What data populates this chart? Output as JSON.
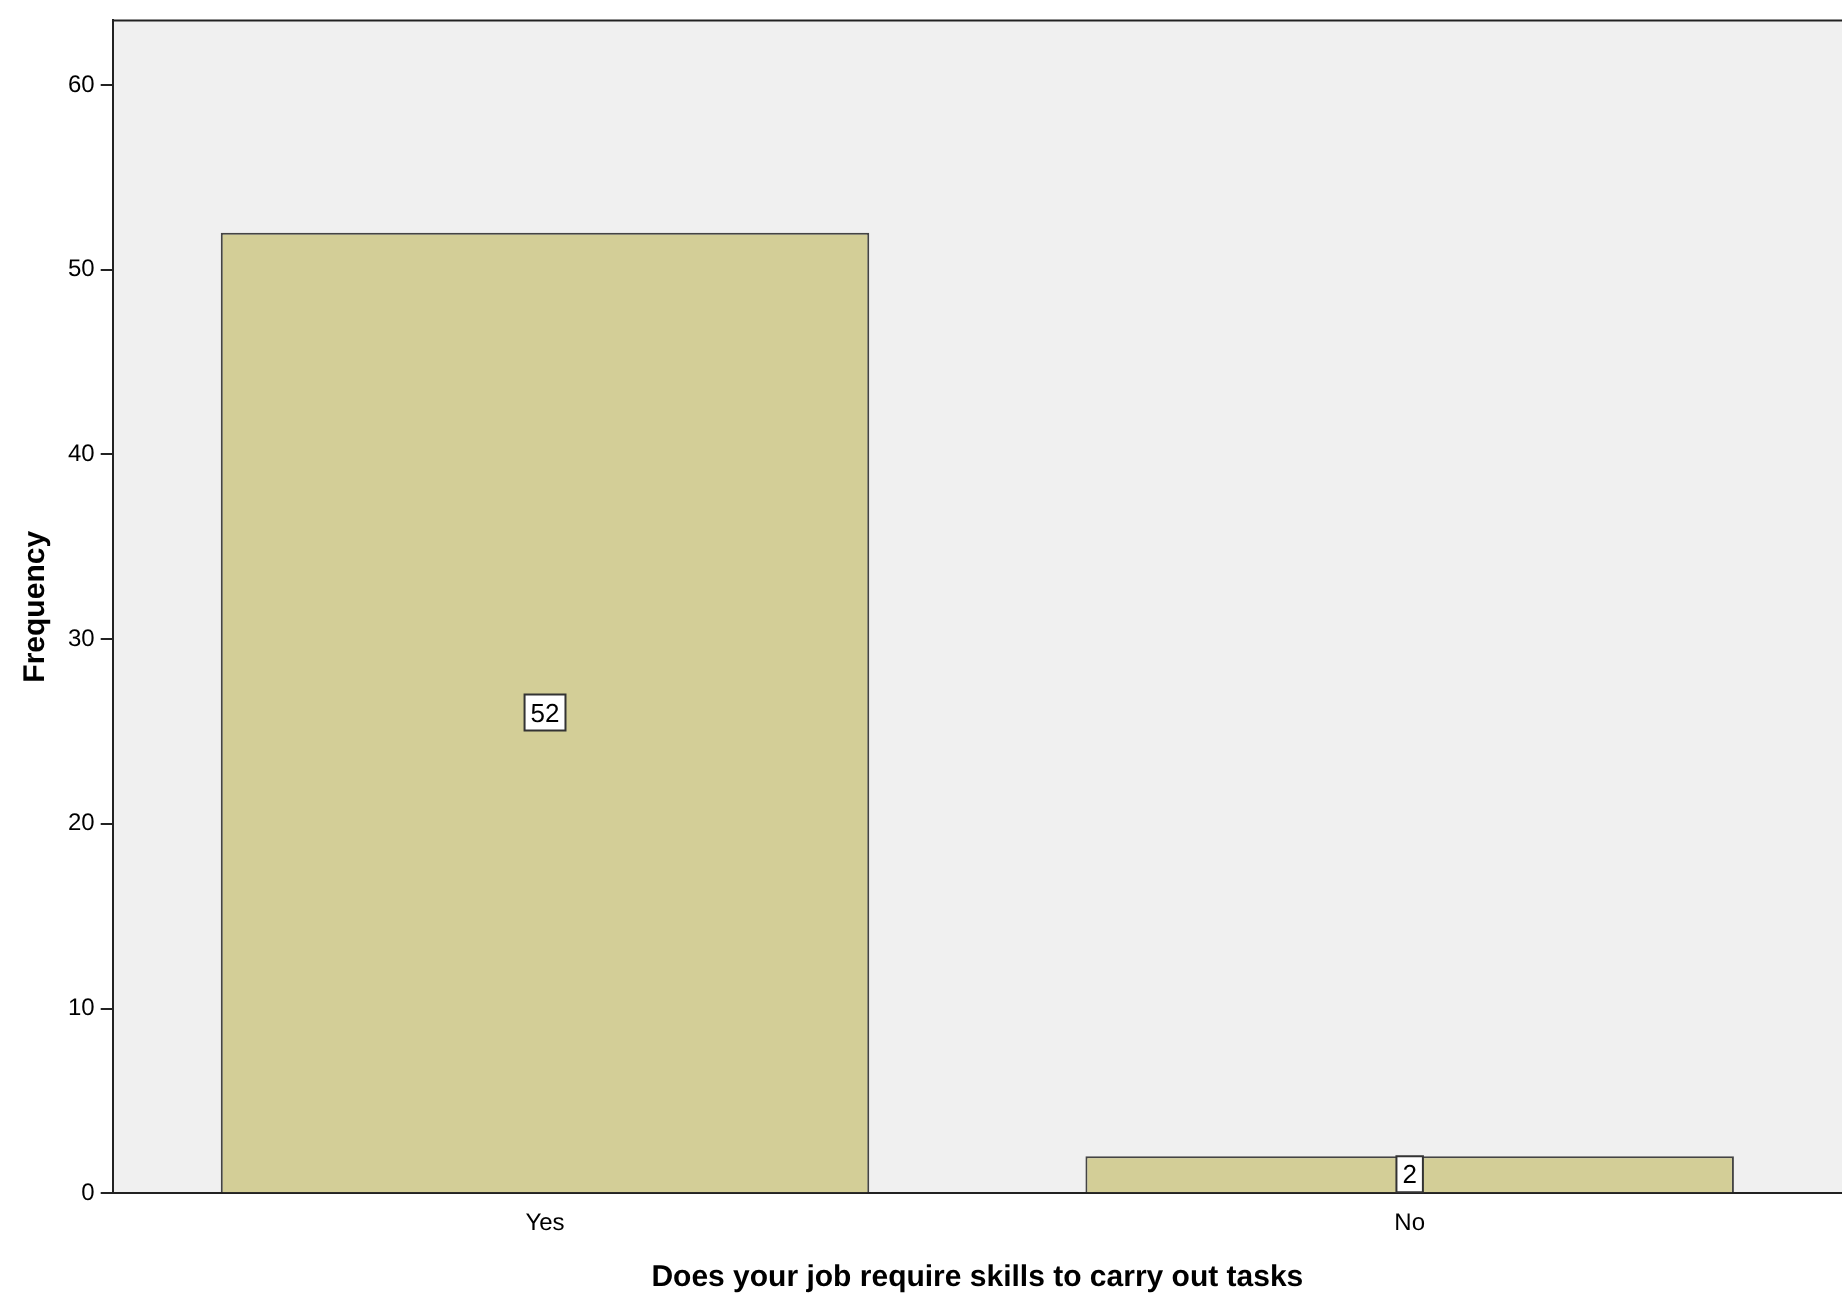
{
  "chart_data": {
    "type": "bar",
    "xlabel": "Does your job require skills to carry out tasks",
    "ylabel": "Frequency",
    "categories": [
      "Yes",
      "No"
    ],
    "values": [
      52,
      2
    ],
    "color": "#d3ce97",
    "ylim": [
      0,
      63.5
    ],
    "yticks": [
      0,
      10,
      20,
      30,
      40,
      50,
      60
    ],
    "data_labels": true,
    "grid": false,
    "legend": false
  }
}
